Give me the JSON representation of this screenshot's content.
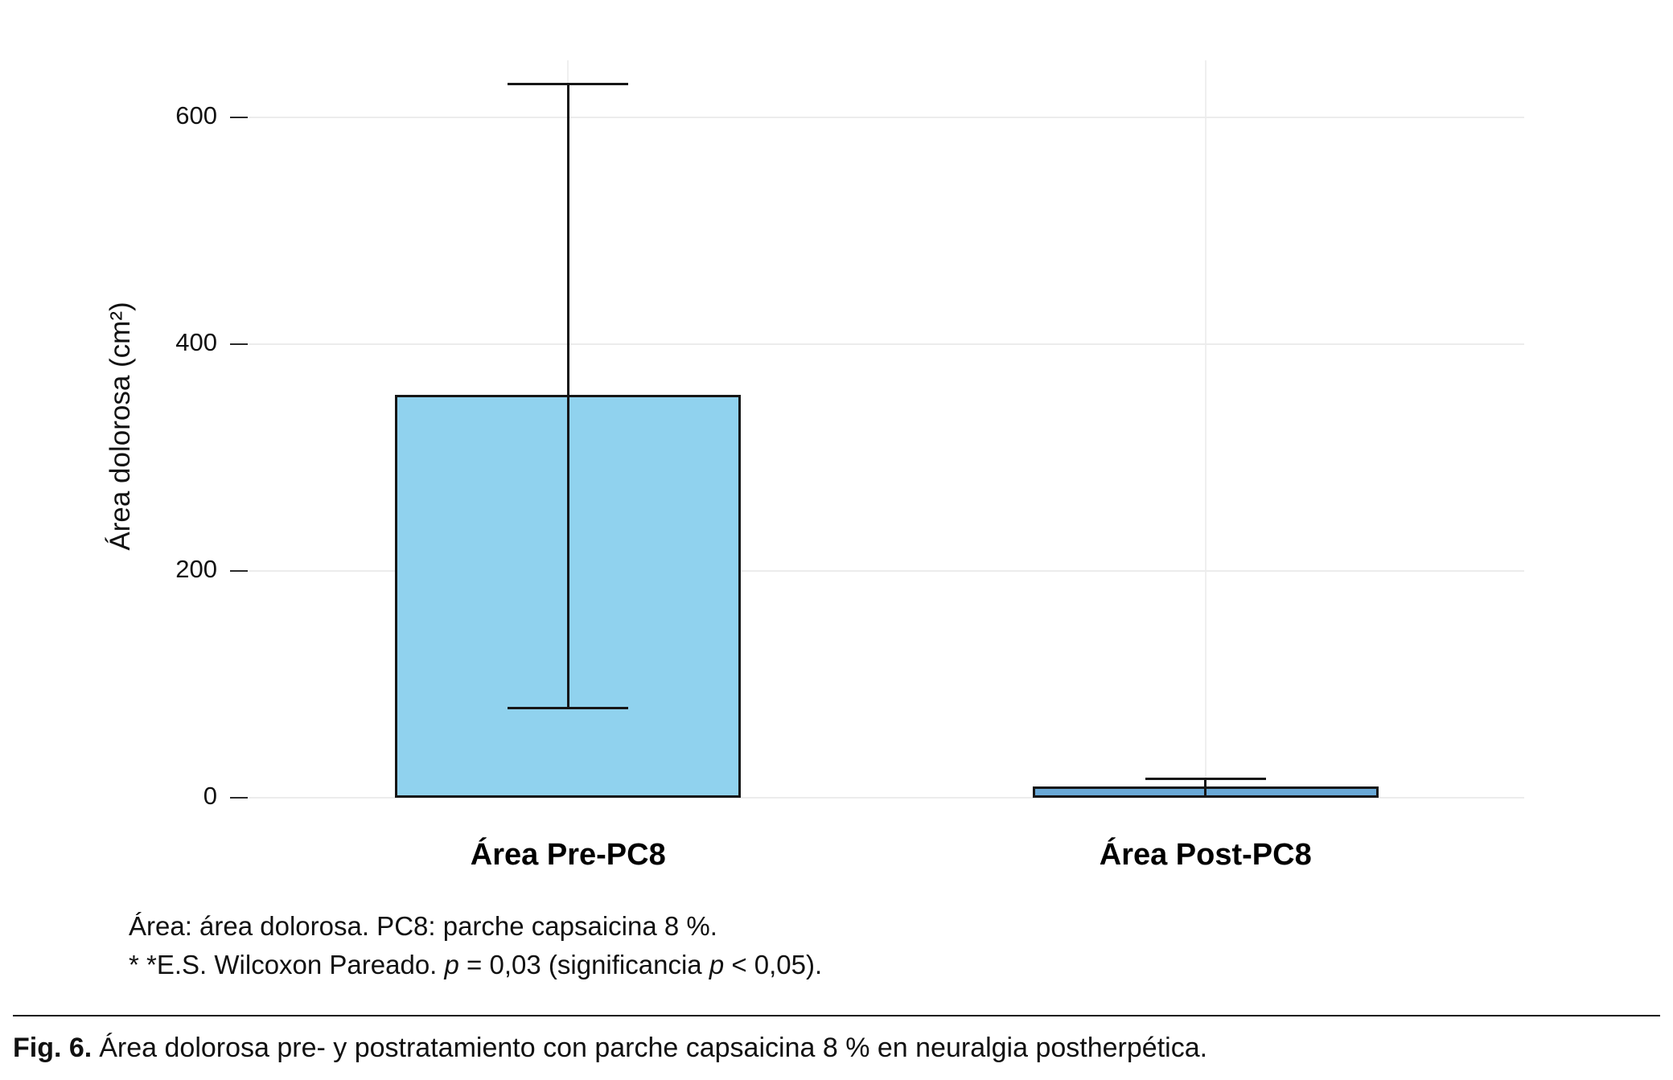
{
  "chart_data": {
    "type": "bar",
    "title": "",
    "xlabel": "",
    "ylabel": "Área dolorosa (cm²)",
    "categories": [
      "Área Pre-PC8",
      "Área Post-PC8"
    ],
    "values": [
      355,
      10
    ],
    "error_low": [
      80,
      2
    ],
    "error_high": [
      630,
      18
    ],
    "yticks": [
      0,
      200,
      400,
      600
    ],
    "ylim": [
      0,
      650
    ],
    "bar_colors": [
      "#90D2EE",
      "#69A8D6"
    ],
    "bar_border_color": "#161616",
    "grid": true,
    "legend": "none"
  },
  "notes": {
    "line1": "Área: área dolorosa. PC8: parche capsaicina 8 %.",
    "line2": {
      "a": "* *E.S. Wilcoxon Pareado. ",
      "b": "p",
      "c": " = 0,03 (significancia ",
      "d": "p",
      "e": " < 0,05)."
    }
  },
  "figure": {
    "caption_label": "Fig. 6.",
    "caption_text": "Área dolorosa pre- y postratamiento con parche capsaicina 8 % en neuralgia postherpética."
  }
}
